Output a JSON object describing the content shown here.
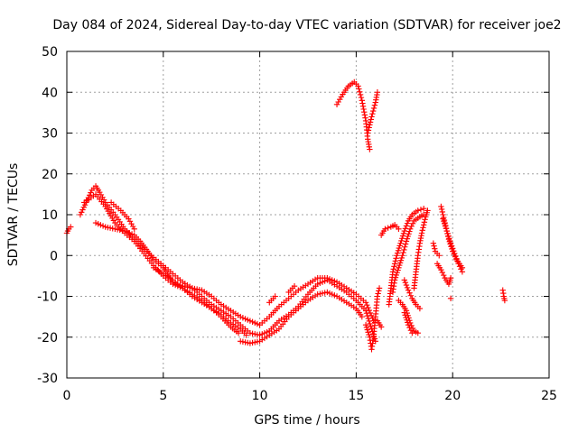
{
  "chart_data": {
    "type": "scatter",
    "title": "Day 084 of 2024, Sidereal Day-to-day VTEC variation (SDTVAR) for receiver joe2",
    "xlabel": "GPS time / hours",
    "ylabel": "SDTVAR / TECUs",
    "xlim": [
      0,
      25
    ],
    "ylim": [
      -30,
      50
    ],
    "xticks": [
      0,
      5,
      10,
      15,
      20,
      25
    ],
    "yticks": [
      -30,
      -20,
      -10,
      0,
      10,
      20,
      30,
      40,
      50
    ],
    "grid": true,
    "marker": "+",
    "color": "#ff0000",
    "tracks": [
      {
        "name": "t01",
        "points": [
          [
            0.0,
            5.5
          ],
          [
            0.1,
            6.5
          ],
          [
            0.2,
            7.0
          ]
        ]
      },
      {
        "name": "t02",
        "points": [
          [
            0.7,
            10.0
          ],
          [
            1.0,
            13.0
          ],
          [
            1.3,
            16.0
          ],
          [
            1.5,
            17.0
          ],
          [
            1.7,
            15.5
          ],
          [
            2.0,
            13.0
          ],
          [
            2.5,
            10.0
          ],
          [
            3.0,
            6.5
          ],
          [
            3.5,
            4.0
          ],
          [
            4.0,
            1.5
          ],
          [
            4.5,
            -0.5
          ],
          [
            5.0,
            -2.5
          ],
          [
            5.5,
            -4.5
          ],
          [
            6.0,
            -6.5
          ],
          [
            6.5,
            -8.0
          ],
          [
            7.0,
            -10.0
          ],
          [
            7.5,
            -12.0
          ],
          [
            8.0,
            -13.5
          ],
          [
            8.5,
            -15.0
          ],
          [
            9.0,
            -17.0
          ],
          [
            9.5,
            -19.0
          ],
          [
            10.0,
            -19.5
          ],
          [
            10.5,
            -18.5
          ],
          [
            11.0,
            -16.0
          ],
          [
            11.5,
            -14.5
          ],
          [
            12.0,
            -12.5
          ],
          [
            12.5,
            -9.5
          ],
          [
            13.0,
            -7.0
          ],
          [
            13.5,
            -6.0
          ],
          [
            14.0,
            -7.5
          ],
          [
            14.5,
            -9.0
          ],
          [
            15.0,
            -11.0
          ],
          [
            15.5,
            -13.5
          ],
          [
            15.8,
            -18.0
          ],
          [
            16.0,
            -21.0
          ]
        ]
      },
      {
        "name": "t03",
        "points": [
          [
            0.9,
            13.0
          ],
          [
            1.5,
            15.0
          ],
          [
            2.0,
            12.0
          ],
          [
            2.5,
            8.0
          ],
          [
            3.0,
            5.5
          ],
          [
            3.5,
            3.5
          ],
          [
            4.0,
            0.5
          ],
          [
            4.5,
            -2.5
          ],
          [
            5.0,
            -5.0
          ],
          [
            5.5,
            -7.0
          ],
          [
            6.0,
            -8.0
          ],
          [
            6.5,
            -9.5
          ],
          [
            7.0,
            -11.0
          ],
          [
            7.5,
            -13.0
          ],
          [
            8.0,
            -15.0
          ],
          [
            8.5,
            -17.5
          ],
          [
            8.9,
            -19.0
          ]
        ]
      },
      {
        "name": "t04",
        "points": [
          [
            1.5,
            8.0
          ],
          [
            2.0,
            7.0
          ],
          [
            2.5,
            6.5
          ],
          [
            3.0,
            6.0
          ],
          [
            3.5,
            5.0
          ],
          [
            3.8,
            3.5
          ],
          [
            4.2,
            1.0
          ],
          [
            4.5,
            -1.0
          ],
          [
            5.0,
            -3.0
          ],
          [
            5.3,
            -5.0
          ],
          [
            5.5,
            -6.5
          ],
          [
            6.0,
            -7.5
          ],
          [
            6.5,
            -8.0
          ],
          [
            7.0,
            -8.5
          ],
          [
            7.5,
            -10.0
          ],
          [
            8.0,
            -12.0
          ],
          [
            8.5,
            -13.5
          ],
          [
            9.0,
            -15.0
          ],
          [
            9.5,
            -16.0
          ],
          [
            10.0,
            -17.0
          ],
          [
            10.5,
            -15.0
          ],
          [
            11.0,
            -12.5
          ],
          [
            11.5,
            -10.5
          ],
          [
            12.0,
            -8.5
          ],
          [
            12.5,
            -7.0
          ],
          [
            13.0,
            -5.5
          ],
          [
            13.5,
            -5.5
          ],
          [
            14.0,
            -6.5
          ],
          [
            14.5,
            -8.0
          ],
          [
            15.0,
            -9.5
          ],
          [
            15.5,
            -11.5
          ],
          [
            15.9,
            -16.0
          ]
        ]
      },
      {
        "name": "t05",
        "points": [
          [
            2.3,
            13.0
          ],
          [
            2.8,
            11.0
          ],
          [
            3.2,
            9.0
          ],
          [
            3.5,
            6.5
          ]
        ]
      },
      {
        "name": "t06",
        "points": [
          [
            4.5,
            -3.0
          ],
          [
            5.0,
            -4.5
          ],
          [
            5.5,
            -6.0
          ],
          [
            6.0,
            -8.0
          ],
          [
            6.5,
            -10.0
          ],
          [
            7.0,
            -11.5
          ],
          [
            7.5,
            -13.0
          ],
          [
            8.0,
            -14.5
          ],
          [
            8.5,
            -16.5
          ],
          [
            9.0,
            -18.0
          ],
          [
            9.3,
            -19.5
          ]
        ]
      },
      {
        "name": "t07",
        "points": [
          [
            9.0,
            -21.0
          ],
          [
            9.5,
            -21.5
          ],
          [
            10.0,
            -21.0
          ],
          [
            10.5,
            -19.5
          ],
          [
            11.0,
            -18.0
          ],
          [
            11.5,
            -15.0
          ],
          [
            12.0,
            -13.0
          ],
          [
            12.5,
            -11.0
          ],
          [
            13.0,
            -9.5
          ],
          [
            13.5,
            -9.0
          ],
          [
            14.0,
            -10.0
          ],
          [
            14.5,
            -11.5
          ],
          [
            15.0,
            -13.0
          ],
          [
            15.3,
            -15.0
          ]
        ]
      },
      {
        "name": "t08",
        "points": [
          [
            10.5,
            -11.5
          ],
          [
            10.8,
            -10.0
          ]
        ]
      },
      {
        "name": "t09",
        "points": [
          [
            11.5,
            -9.0
          ],
          [
            11.8,
            -7.5
          ]
        ]
      },
      {
        "name": "t10",
        "points": [
          [
            14.0,
            37.0
          ],
          [
            14.3,
            39.5
          ],
          [
            14.6,
            41.5
          ],
          [
            14.9,
            42.5
          ],
          [
            15.1,
            41.5
          ],
          [
            15.3,
            38.0
          ],
          [
            15.5,
            33.0
          ],
          [
            15.6,
            28.5
          ],
          [
            15.7,
            26.0
          ]
        ]
      },
      {
        "name": "t11",
        "points": [
          [
            15.6,
            30.0
          ],
          [
            15.8,
            34.0
          ],
          [
            16.0,
            37.5
          ],
          [
            16.1,
            40.0
          ]
        ]
      },
      {
        "name": "t12",
        "points": [
          [
            15.5,
            -17.0
          ],
          [
            15.7,
            -20.0
          ],
          [
            15.8,
            -23.0
          ],
          [
            15.9,
            -20.0
          ],
          [
            16.0,
            -15.0
          ],
          [
            16.1,
            -10.0
          ],
          [
            16.2,
            -8.0
          ]
        ]
      },
      {
        "name": "t13",
        "points": [
          [
            16.1,
            -16.0
          ],
          [
            16.3,
            -17.5
          ]
        ]
      },
      {
        "name": "t14",
        "points": [
          [
            16.3,
            5.0
          ],
          [
            16.5,
            6.5
          ],
          [
            16.8,
            7.0
          ],
          [
            17.0,
            7.5
          ],
          [
            17.2,
            6.5
          ]
        ]
      },
      {
        "name": "t15",
        "points": [
          [
            16.7,
            -12.0
          ],
          [
            16.8,
            -8.0
          ],
          [
            16.9,
            -4.0
          ],
          [
            17.0,
            -2.0
          ],
          [
            17.1,
            0.0
          ],
          [
            17.3,
            3.0
          ],
          [
            17.5,
            6.0
          ],
          [
            17.7,
            8.5
          ],
          [
            17.9,
            10.0
          ],
          [
            18.2,
            11.0
          ],
          [
            18.5,
            11.5
          ]
        ]
      },
      {
        "name": "t16",
        "points": [
          [
            16.9,
            -9.0
          ],
          [
            17.0,
            -6.0
          ],
          [
            17.2,
            -3.0
          ],
          [
            17.4,
            0.0
          ],
          [
            17.6,
            3.5
          ],
          [
            17.8,
            6.5
          ],
          [
            18.0,
            8.5
          ],
          [
            18.3,
            9.5
          ],
          [
            18.5,
            10.0
          ]
        ]
      },
      {
        "name": "t17",
        "points": [
          [
            17.2,
            -11.0
          ],
          [
            17.4,
            -12.0
          ],
          [
            17.6,
            -13.5
          ],
          [
            17.8,
            -16.5
          ],
          [
            18.0,
            -18.5
          ],
          [
            18.2,
            -19.0
          ]
        ]
      },
      {
        "name": "t18",
        "points": [
          [
            17.5,
            -6.0
          ],
          [
            17.7,
            -8.5
          ],
          [
            17.9,
            -10.5
          ],
          [
            18.1,
            -12.0
          ],
          [
            18.3,
            -13.0
          ]
        ]
      },
      {
        "name": "t19",
        "points": [
          [
            17.5,
            -14.0
          ],
          [
            17.7,
            -17.0
          ],
          [
            17.9,
            -19.0
          ]
        ]
      },
      {
        "name": "t20",
        "points": [
          [
            18.0,
            -8.0
          ],
          [
            18.1,
            -4.0
          ],
          [
            18.2,
            0.0
          ],
          [
            18.3,
            3.0
          ],
          [
            18.4,
            5.5
          ],
          [
            18.5,
            7.5
          ],
          [
            18.6,
            9.5
          ],
          [
            18.7,
            11.0
          ]
        ]
      },
      {
        "name": "t21",
        "points": [
          [
            19.2,
            -2.0
          ],
          [
            19.4,
            -3.5
          ],
          [
            19.6,
            -5.5
          ],
          [
            19.8,
            -7.0
          ],
          [
            19.9,
            -5.5
          ]
        ]
      },
      {
        "name": "t22",
        "points": [
          [
            19.0,
            3.0
          ],
          [
            19.1,
            1.0
          ],
          [
            19.3,
            0.0
          ]
        ]
      },
      {
        "name": "t23",
        "points": [
          [
            19.4,
            12.0
          ],
          [
            19.6,
            8.0
          ],
          [
            19.8,
            4.0
          ],
          [
            20.0,
            1.0
          ],
          [
            20.2,
            -1.0
          ],
          [
            20.5,
            -3.0
          ]
        ]
      },
      {
        "name": "t24",
        "points": [
          [
            19.5,
            9.0
          ],
          [
            19.7,
            6.0
          ],
          [
            19.9,
            3.0
          ],
          [
            20.1,
            0.5
          ],
          [
            20.3,
            -2.0
          ],
          [
            20.5,
            -4.0
          ]
        ]
      },
      {
        "name": "t25",
        "points": [
          [
            19.9,
            -10.5
          ]
        ]
      },
      {
        "name": "t26",
        "points": [
          [
            22.6,
            -8.5
          ],
          [
            22.65,
            -10.0
          ],
          [
            22.7,
            -11.0
          ]
        ]
      }
    ]
  }
}
